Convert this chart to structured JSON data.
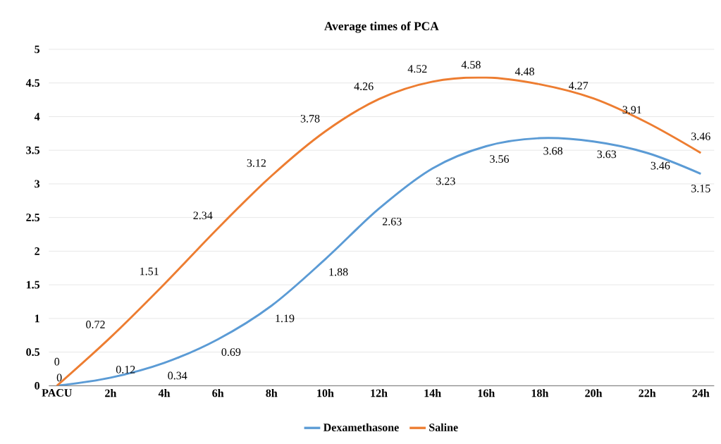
{
  "chart_data": {
    "type": "line",
    "title": "Average times of PCA",
    "categories": [
      "PACU",
      "2h",
      "4h",
      "6h",
      "8h",
      "10h",
      "12h",
      "14h",
      "16h",
      "18h",
      "20h",
      "22h",
      "24h"
    ],
    "series": [
      {
        "name": "Dexamethasone",
        "color": "#5b9bd5",
        "values": [
          0,
          0.12,
          0.34,
          0.69,
          1.19,
          1.88,
          2.63,
          3.23,
          3.56,
          3.68,
          3.63,
          3.46,
          3.15
        ]
      },
      {
        "name": "Saline",
        "color": "#ed7d31",
        "values": [
          0,
          0.72,
          1.51,
          2.34,
          3.12,
          3.78,
          4.26,
          4.52,
          4.58,
          4.48,
          4.27,
          3.91,
          3.46
        ]
      }
    ],
    "ylim": [
      0,
      5
    ],
    "yticks": [
      0,
      0.5,
      1,
      1.5,
      2,
      2.5,
      3,
      3.5,
      4,
      4.5,
      5
    ],
    "grid": "y",
    "legend": "bottom",
    "data_labels": true,
    "marker": "none",
    "line_style": "solid"
  }
}
